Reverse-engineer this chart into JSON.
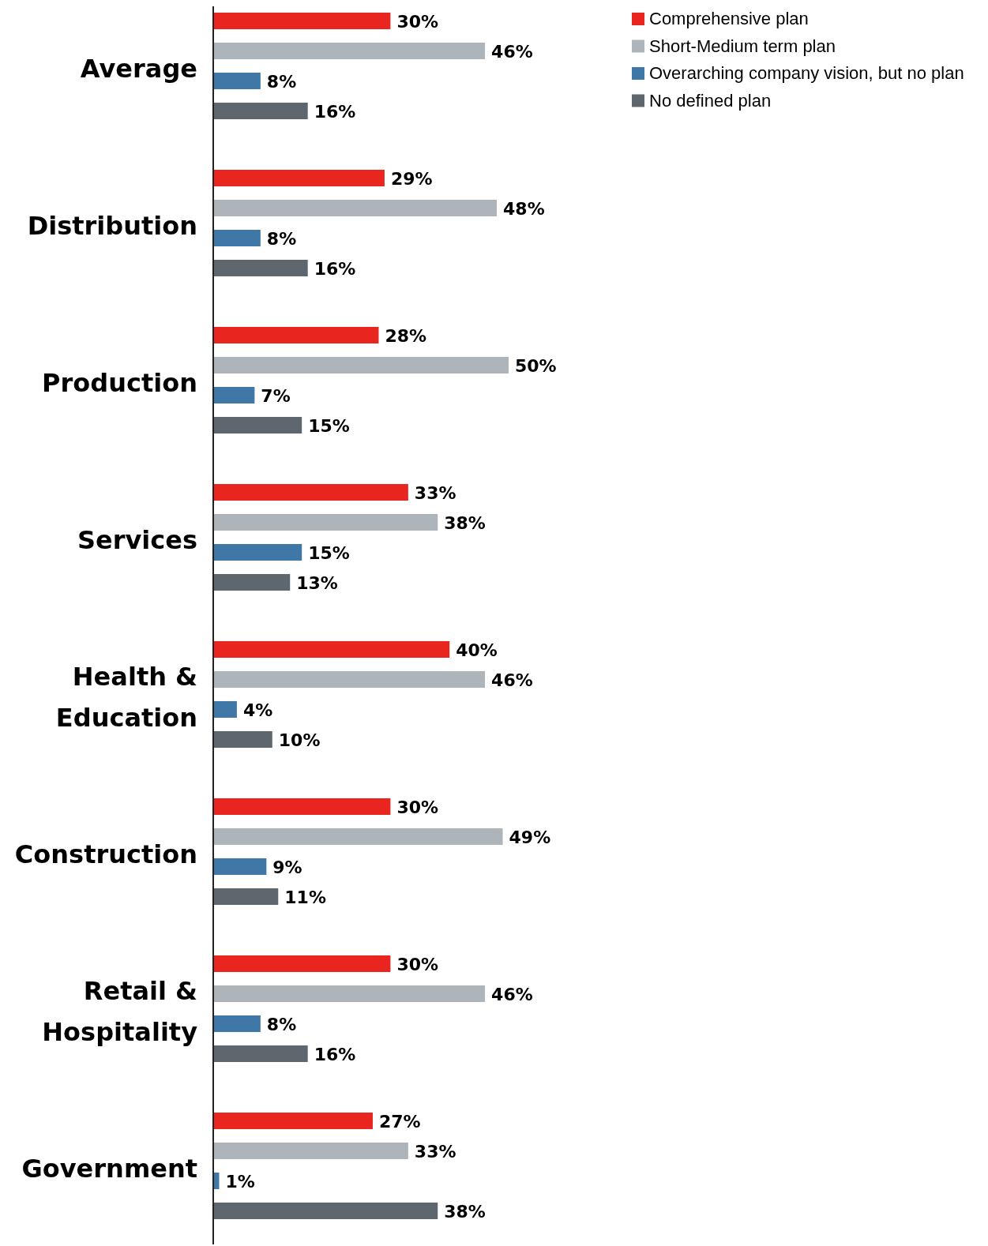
{
  "chart_data": {
    "type": "bar",
    "orientation": "horizontal",
    "legend": "top right",
    "categories": [
      "Average",
      "Distribution",
      "Production",
      "Services",
      "Health & Education",
      "Construction",
      "Retail & Hospitality",
      "Government"
    ],
    "series": [
      {
        "name": "Comprehensive plan",
        "color": "#e8251f",
        "values": [
          30,
          29,
          28,
          33,
          40,
          30,
          30,
          27
        ],
        "value_labels": [
          "30%",
          "29%",
          "28%",
          "33%",
          "40%",
          "30%",
          "30%",
          "27%"
        ]
      },
      {
        "name": "Short-Medium term plan",
        "color": "#adb5bb",
        "values": [
          46,
          48,
          50,
          38,
          46,
          49,
          46,
          33
        ],
        "value_labels": [
          "46%",
          "48%",
          "50%",
          "38%",
          "46%",
          "49%",
          "46%",
          "33%"
        ]
      },
      {
        "name": "Overarching company vision, but no plan",
        "color": "#3f78a6",
        "values": [
          8,
          8,
          7,
          15,
          4,
          9,
          8,
          1
        ],
        "value_labels": [
          "8%",
          "8%",
          "7%",
          "15%",
          "4%",
          "9%",
          "8%",
          "1%"
        ]
      },
      {
        "name": "No defined plan",
        "color": "#5f676e",
        "values": [
          16,
          16,
          15,
          13,
          10,
          11,
          16,
          38
        ],
        "value_labels": [
          "16%",
          "16%",
          "15%",
          "13%",
          "10%",
          "11%",
          "16%",
          "38%"
        ]
      }
    ]
  }
}
